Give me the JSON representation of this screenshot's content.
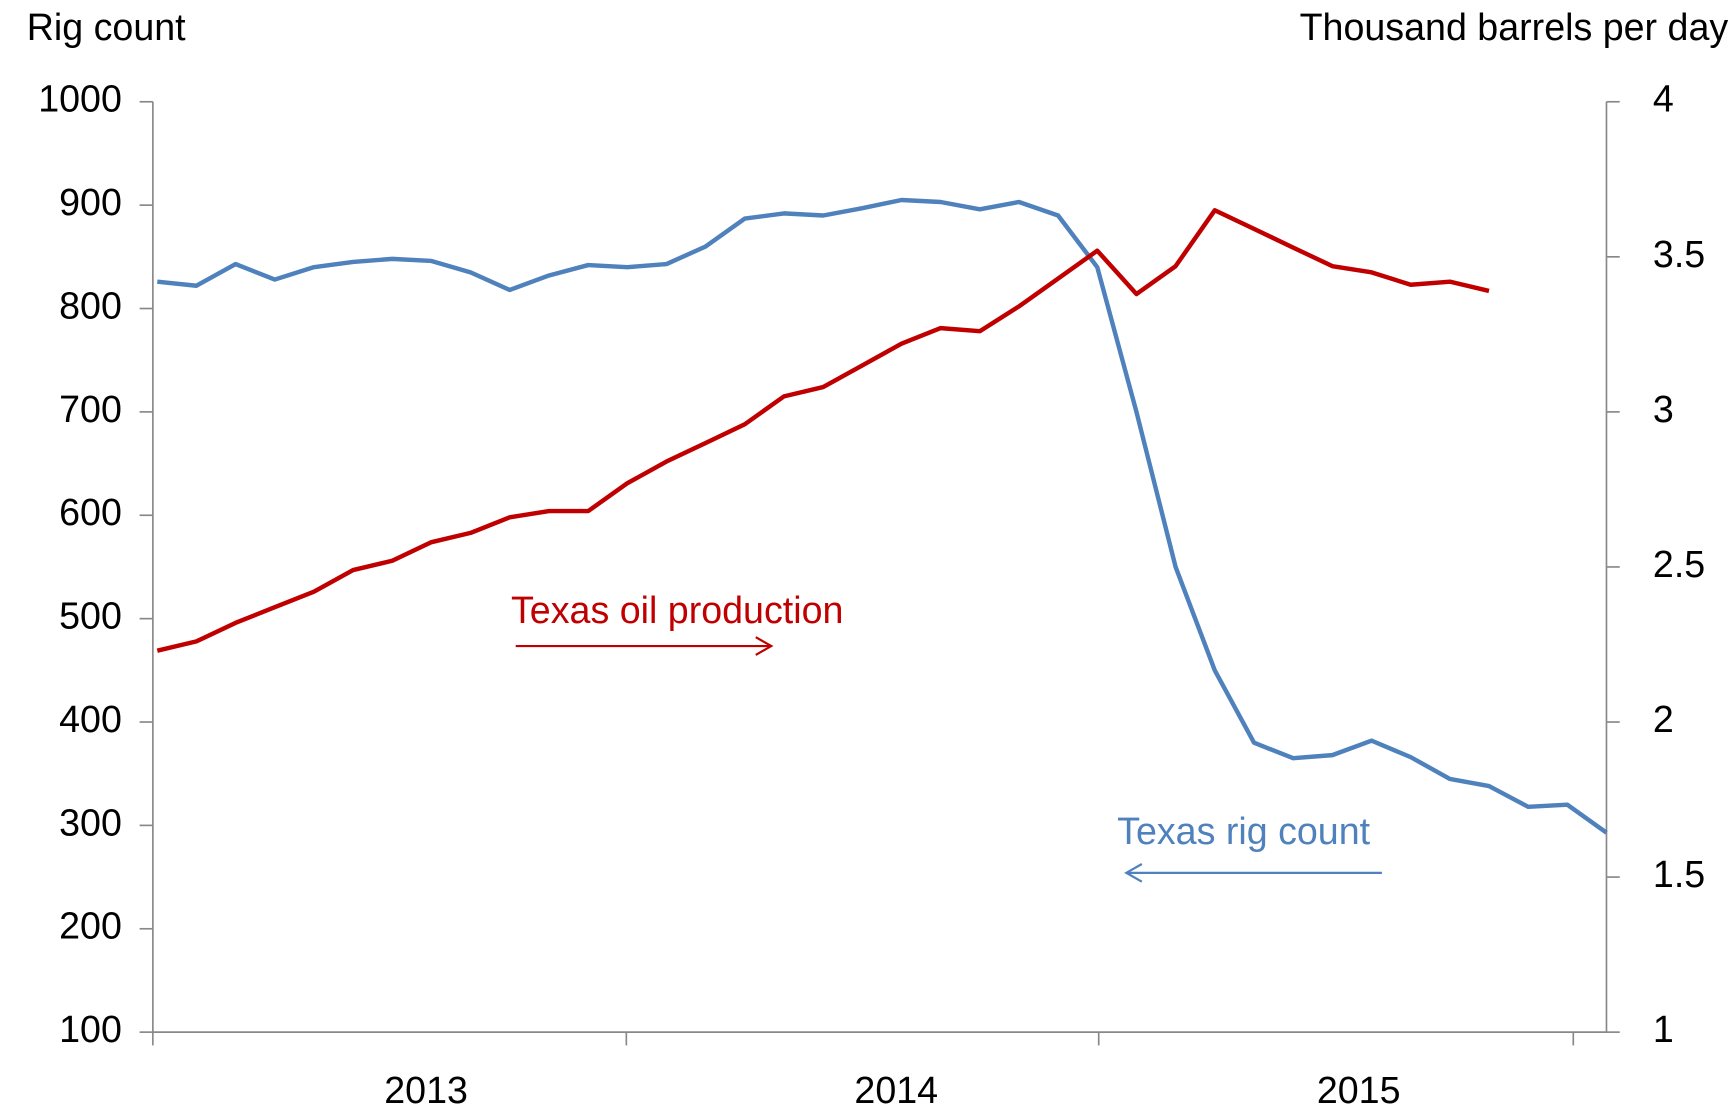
{
  "chart_data": {
    "type": "line",
    "y_label": "Rig count",
    "y2_label": "Thousand barrels per day",
    "x_tick_labels": [
      "2013",
      "2014",
      "2015"
    ],
    "ylim": [
      100,
      1000
    ],
    "yticks": [
      100,
      200,
      300,
      400,
      500,
      600,
      700,
      800,
      900,
      1000
    ],
    "y2lim": [
      1,
      4
    ],
    "y2ticks": [
      1,
      1.5,
      2,
      2.5,
      3,
      3.5,
      4
    ],
    "grid": false,
    "series": [
      {
        "name": "Texas rig count",
        "color": "#4f81bd",
        "axis": "y",
        "values": [
          826,
          822,
          843,
          828,
          840,
          845,
          848,
          846,
          835,
          818,
          832,
          842,
          840,
          843,
          860,
          887,
          892,
          890,
          897,
          905,
          903,
          896,
          903,
          890,
          840,
          700,
          550,
          450,
          380,
          365,
          368,
          382,
          366,
          345,
          338,
          318,
          320,
          293
        ]
      },
      {
        "name": "Texas oil production",
        "color": "#c00000",
        "axis": "y2",
        "values": [
          2.23,
          2.26,
          2.32,
          2.37,
          2.42,
          2.49,
          2.52,
          2.58,
          2.61,
          2.66,
          2.68,
          2.68,
          2.77,
          2.84,
          2.9,
          2.96,
          3.05,
          3.08,
          3.15,
          3.22,
          3.27,
          3.26,
          3.34,
          3.43,
          3.52,
          3.38,
          3.47,
          3.65,
          3.59,
          3.53,
          3.47,
          3.45,
          3.41,
          3.42,
          3.39,
          null,
          null,
          null
        ]
      }
    ]
  }
}
